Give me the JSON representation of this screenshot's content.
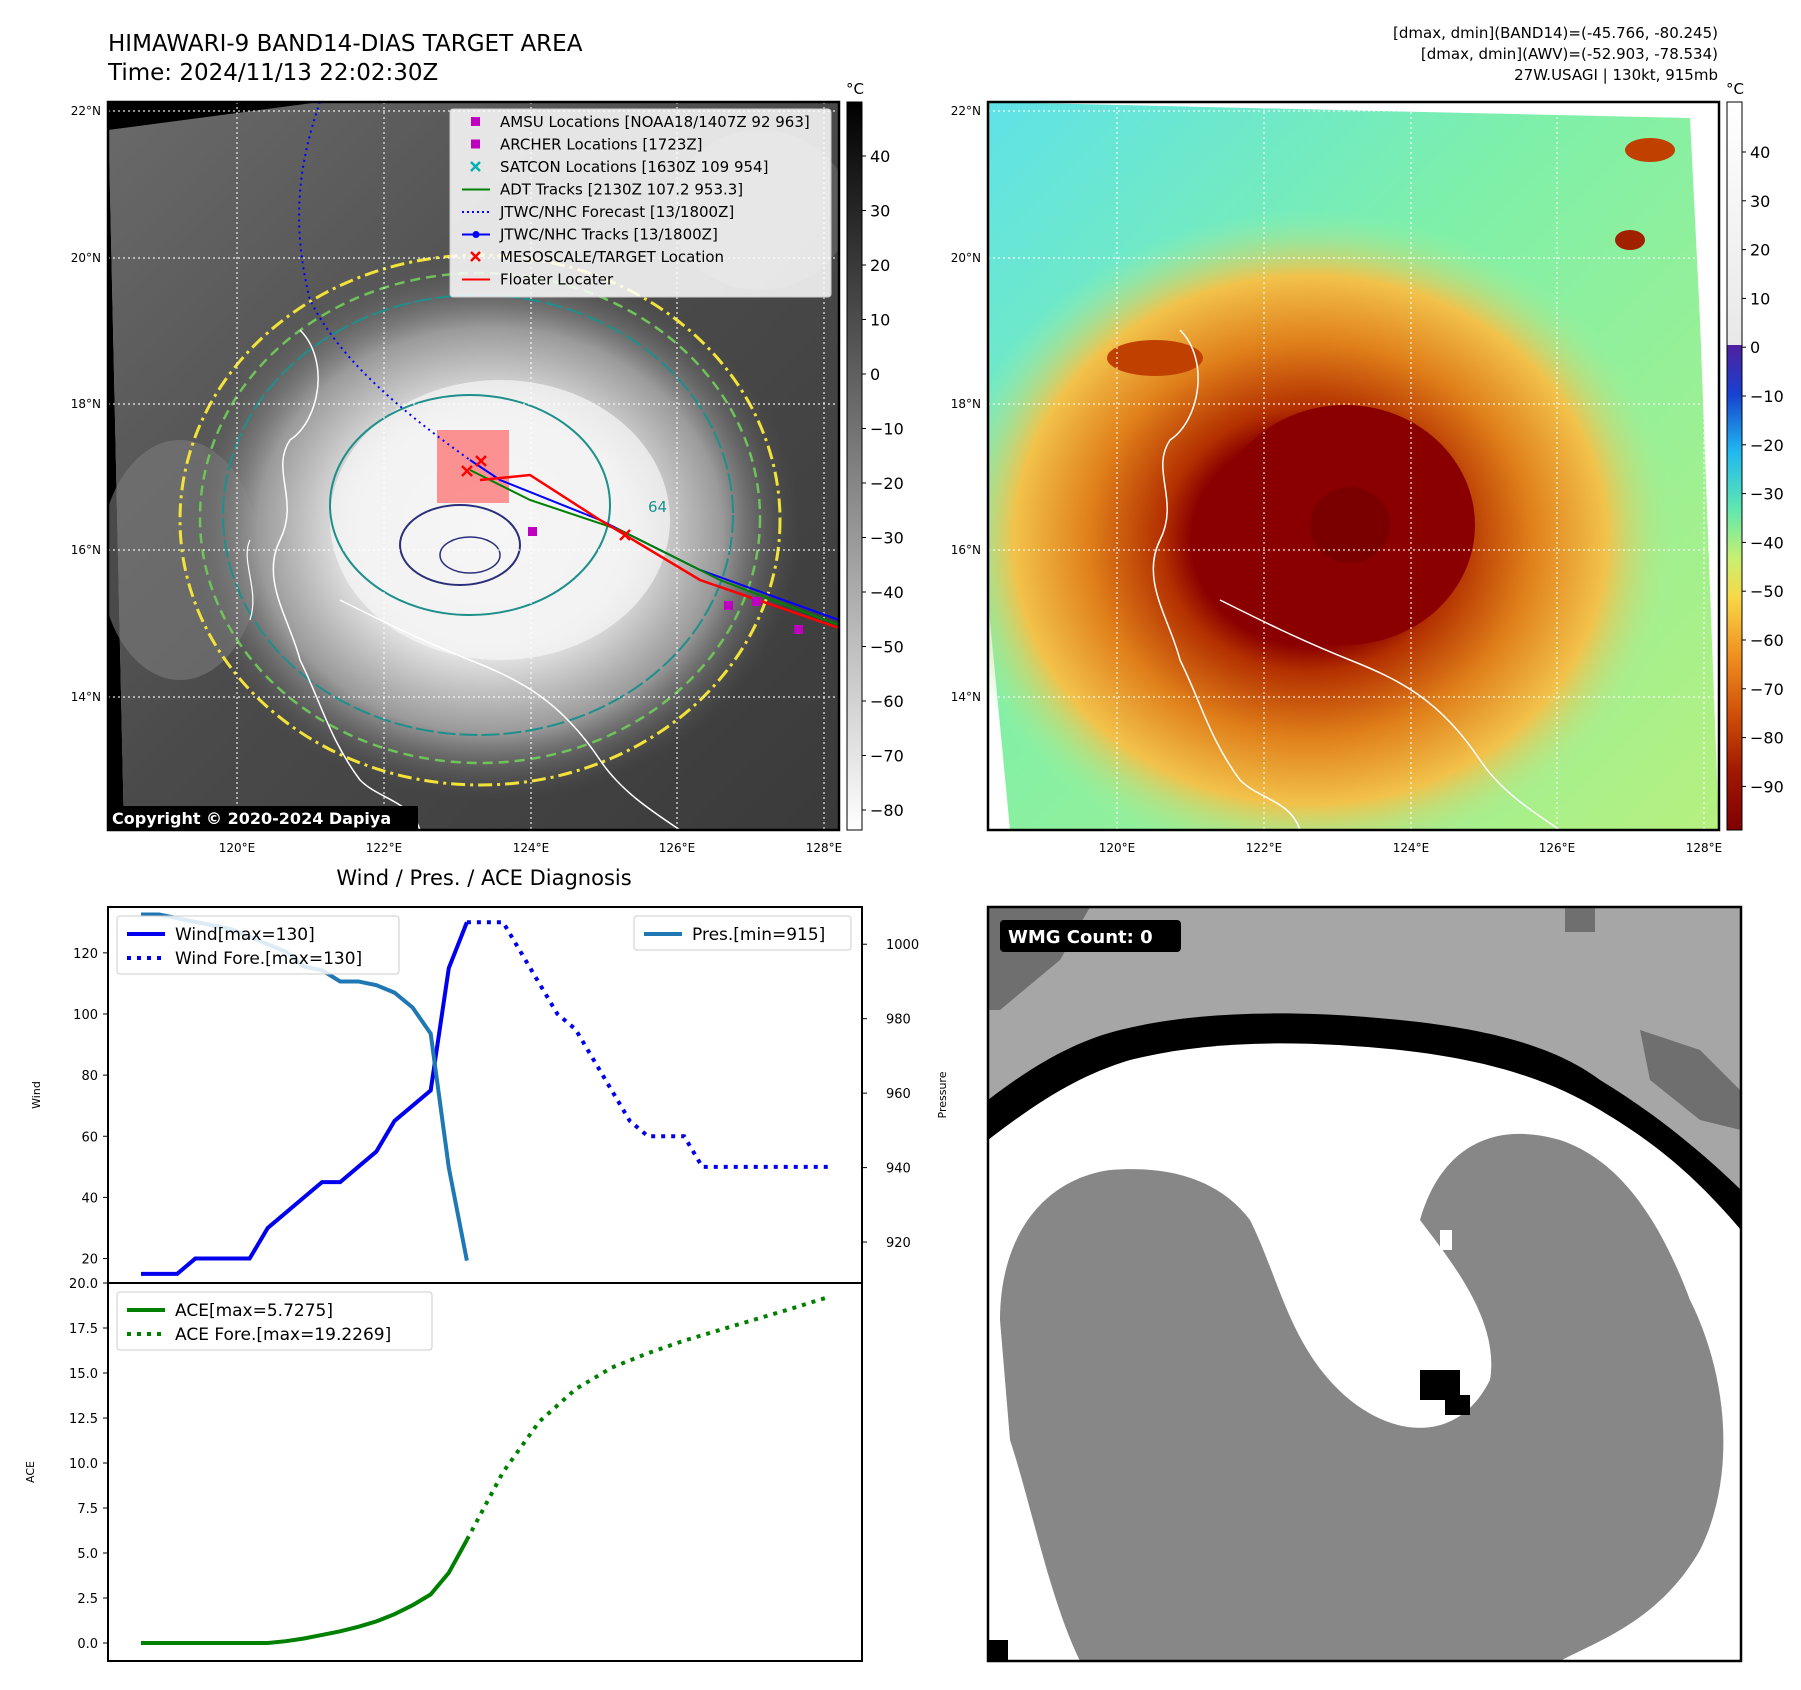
{
  "header": {
    "title_line1": "HIMAWARI-9 BAND14-DIAS TARGET AREA",
    "title_line2": "Time: 2024/11/13 22:02:30Z",
    "info_line1": "[dmax, dmin](BAND14)=(-45.766, -80.245)",
    "info_line2": "[dmax, dmin](AWV)=(-52.903, -78.534)",
    "info_line3": "27W.USAGI | 130kt, 915mb"
  },
  "map": {
    "lat_ticks": [
      "22°N",
      "20°N",
      "18°N",
      "16°N",
      "14°N"
    ],
    "lon_ticks": [
      "120°E",
      "122°E",
      "124°E",
      "126°E",
      "128°E"
    ],
    "copyright": "Copyright © 2020-2024 Dapiya",
    "contour_label": "64",
    "colors": {
      "contour_yellow": "#f2e33a",
      "contour_green": "#6fc35a",
      "contour_teal": "#1e8f8a",
      "contour_navy": "#2b2f7a",
      "coast": "#ffffff"
    }
  },
  "legend": {
    "items": [
      {
        "label": "AMSU Locations [NOAA18/1407Z 92 963]",
        "marker": "square",
        "color": "#c000c0"
      },
      {
        "label": "ARCHER Locations [1723Z]",
        "marker": "square",
        "color": "#c000c0"
      },
      {
        "label": "SATCON Locations [1630Z 109 954]",
        "marker": "x",
        "color": "#00b0b0"
      },
      {
        "label": "ADT Tracks [2130Z 107.2 953.3]",
        "marker": "line",
        "color": "#008000"
      },
      {
        "label": "JTWC/NHC Forecast [13/1800Z]",
        "marker": "dotted",
        "color": "#0000ff"
      },
      {
        "label": "JTWC/NHC Tracks [13/1800Z]",
        "marker": "line-dot",
        "color": "#0000ff"
      },
      {
        "label": "MESOSCALE/TARGET Location",
        "marker": "x",
        "color": "#ff0000"
      },
      {
        "label": "Floater Locater",
        "marker": "line",
        "color": "#ff0000"
      }
    ]
  },
  "colorbar_gray": {
    "unit": "°C",
    "ticks": [
      "40",
      "30",
      "20",
      "10",
      "0",
      "−10",
      "−20",
      "−30",
      "−40",
      "−50",
      "−60",
      "−70",
      "−80"
    ]
  },
  "colorbar_color": {
    "unit": "°C",
    "ticks": [
      "40",
      "30",
      "20",
      "10",
      "0",
      "−10",
      "−20",
      "−30",
      "−40",
      "−50",
      "−60",
      "−70",
      "−80",
      "−90"
    ]
  },
  "diagnosis": {
    "title": "Wind / Pres. / ACE Diagnosis"
  },
  "wmg": {
    "label": "WMG Count: 0"
  },
  "chart_data": [
    {
      "type": "line",
      "ylabel": "Wind",
      "y2label": "Pressure",
      "ylim": [
        12,
        135
      ],
      "y2lim": [
        909,
        1010
      ],
      "yticks": [
        20,
        40,
        60,
        80,
        100,
        120
      ],
      "y2ticks": [
        920,
        940,
        960,
        980,
        1000
      ],
      "legend_left": [
        "Wind[max=130]",
        "Wind Fore.[max=130]"
      ],
      "legend_right": [
        "Pres.[min=915]"
      ],
      "series": [
        {
          "name": "Wind[max=130]",
          "style": "solid",
          "color": "#0000ee",
          "axis": "left",
          "x": [
            0,
            1,
            2,
            3,
            4,
            5,
            6,
            7,
            8,
            9,
            10,
            11,
            12,
            13,
            14,
            15,
            16,
            17,
            18
          ],
          "y": [
            15,
            15,
            15,
            20,
            20,
            20,
            20,
            30,
            35,
            40,
            45,
            45,
            50,
            55,
            65,
            70,
            75,
            115,
            130
          ]
        },
        {
          "name": "Wind Fore.[max=130]",
          "style": "dotted",
          "color": "#0000ee",
          "axis": "left",
          "x": [
            18,
            19,
            20,
            21,
            22,
            23,
            24,
            25,
            26,
            27,
            28,
            29,
            30,
            31,
            32,
            33,
            34,
            35,
            36,
            37,
            38
          ],
          "y": [
            130,
            130,
            130,
            120,
            110,
            100,
            95,
            85,
            75,
            65,
            60,
            60,
            60,
            50,
            50,
            50,
            50,
            50,
            50,
            50,
            50
          ]
        },
        {
          "name": "Pres.[min=915]",
          "style": "solid",
          "color": "#1f77b4",
          "axis": "right",
          "x": [
            0,
            1,
            2,
            3,
            4,
            5,
            6,
            7,
            8,
            9,
            10,
            11,
            12,
            13,
            14,
            15,
            16,
            17,
            18
          ],
          "y": [
            1008,
            1008,
            1007,
            1006,
            1005,
            1004,
            1002,
            1000,
            998,
            994,
            993,
            990,
            990,
            989,
            987,
            983,
            976,
            940,
            915
          ]
        }
      ]
    },
    {
      "type": "line",
      "ylabel": "ACE",
      "ylim": [
        -1,
        20
      ],
      "yticks": [
        "0.0",
        "2.5",
        "5.0",
        "7.5",
        "10.0",
        "12.5",
        "15.0",
        "17.5",
        "20.0"
      ],
      "legend": [
        "ACE[max=5.7275]",
        "ACE Fore.[max=19.2269]"
      ],
      "series": [
        {
          "name": "ACE[max=5.7275]",
          "style": "solid",
          "color": "#008000",
          "x": [
            0,
            1,
            2,
            3,
            4,
            5,
            6,
            7,
            8,
            9,
            10,
            11,
            12,
            13,
            14,
            15,
            16,
            17,
            18
          ],
          "y": [
            0,
            0,
            0,
            0,
            0,
            0,
            0,
            0,
            0.1,
            0.25,
            0.45,
            0.65,
            0.9,
            1.2,
            1.6,
            2.1,
            2.7,
            3.9,
            5.73
          ]
        },
        {
          "name": "ACE Fore.[max=19.2269]",
          "style": "dotted",
          "color": "#008000",
          "x": [
            18,
            20,
            22,
            24,
            26,
            28,
            30,
            32,
            34,
            36,
            38
          ],
          "y": [
            5.73,
            9.5,
            12.3,
            14.1,
            15.3,
            16.1,
            16.8,
            17.4,
            18.0,
            18.6,
            19.23
          ]
        }
      ]
    }
  ]
}
